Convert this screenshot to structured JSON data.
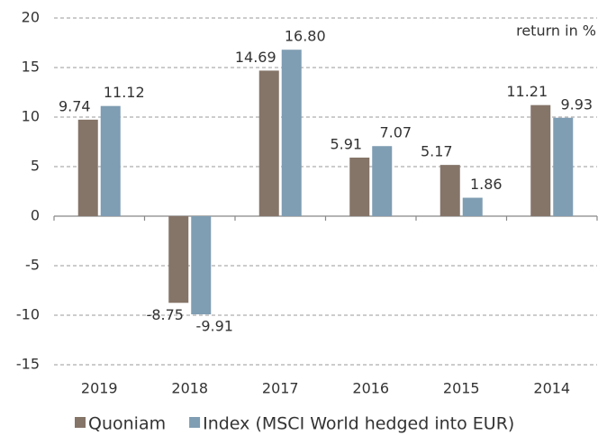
{
  "chart_data": {
    "type": "bar",
    "annotation": "return in %",
    "categories": [
      "2019",
      "2018",
      "2017",
      "2016",
      "2015",
      "2014"
    ],
    "series": [
      {
        "name": "Quoniam",
        "color": "#857468",
        "values": [
          9.74,
          -8.75,
          14.69,
          5.91,
          5.17,
          11.21
        ],
        "value_labels": [
          "9.74",
          "-8.75",
          "14.69",
          "5.91",
          "5.17",
          "11.21"
        ]
      },
      {
        "name": "Index (MSCI World hedged into EUR)",
        "color": "#7f9db3",
        "values": [
          11.12,
          -9.91,
          16.8,
          7.07,
          1.86,
          9.93
        ],
        "value_labels": [
          "11.12",
          "-9.91",
          "16.80",
          "7.07",
          "1.86",
          "9.93"
        ]
      }
    ],
    "ylim": [
      -15,
      20
    ],
    "yticks": [
      -15,
      -10,
      -5,
      0,
      5,
      10,
      15,
      20
    ],
    "grid": true,
    "legend": "bottom"
  }
}
